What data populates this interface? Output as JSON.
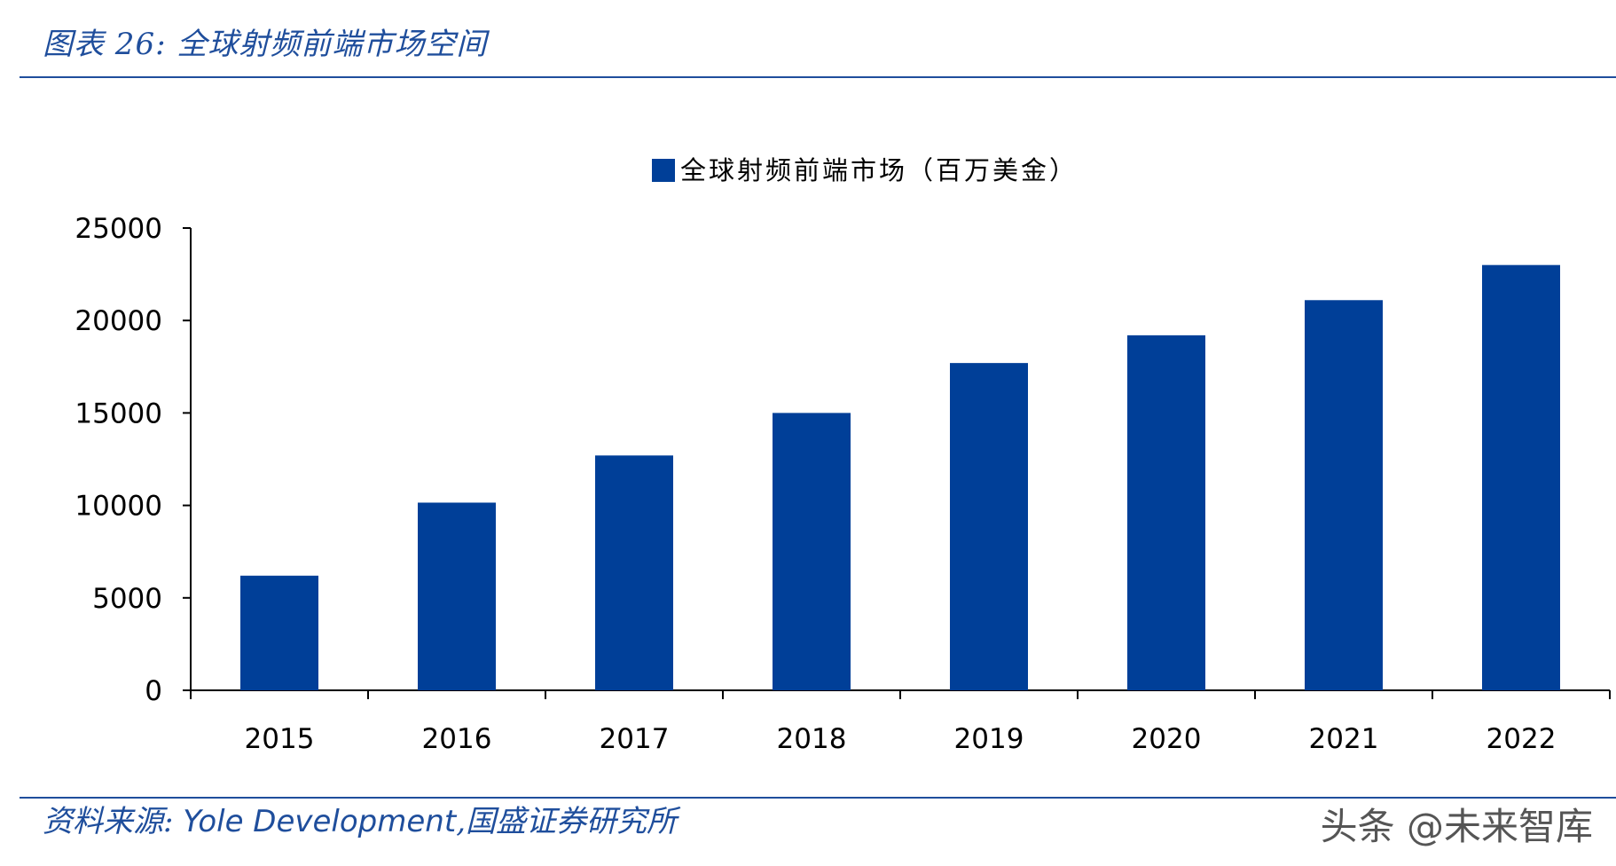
{
  "header": {
    "figure_label": "图表 26:",
    "figure_title": "全球射频前端市场空间"
  },
  "footer": {
    "source_label": "资料来源:",
    "source_text": "Yole Development",
    "source_separator": ",",
    "source_org": "国盛证券研究所",
    "watermark": "头条 @未来智库"
  },
  "colors": {
    "accent": "#1F4E9C",
    "bar": "#003F98",
    "axis": "#000000"
  },
  "chart_data": {
    "type": "bar",
    "categories": [
      "2015",
      "2016",
      "2017",
      "2018",
      "2019",
      "2020",
      "2021",
      "2022"
    ],
    "series": [
      {
        "name": "全球射频前端市场（百万美金）",
        "values": [
          6200,
          10150,
          12700,
          15000,
          17700,
          19200,
          21100,
          23000
        ]
      }
    ],
    "ylim": [
      0,
      25000
    ],
    "yticks": [
      "0",
      "5000",
      "10000",
      "15000",
      "20000",
      "25000"
    ],
    "legend": "top-center",
    "grid": false
  }
}
